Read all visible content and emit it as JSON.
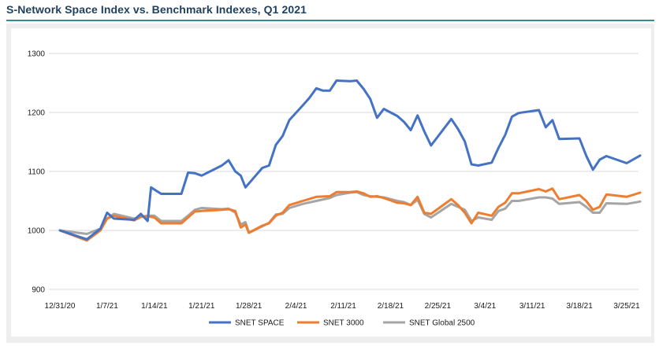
{
  "title": "S-Network Space Index vs. Benchmark Indexes, Q1 2021",
  "colors": {
    "title": "#1f3f5f",
    "rule": "#2e8f8f",
    "grid": "#d9d9d9"
  },
  "chart_data": {
    "type": "line",
    "title": "S-Network Space Index vs. Benchmark Indexes, Q1 2021",
    "xlabel": "",
    "ylabel": "",
    "ylim": [
      900,
      1300
    ],
    "yticks": [
      900,
      1000,
      1100,
      1200,
      1300
    ],
    "xlim": [
      0,
      84
    ],
    "xticks": [
      {
        "x": 0,
        "label": "12/31/20"
      },
      {
        "x": 7,
        "label": "1/7/21"
      },
      {
        "x": 14,
        "label": "1/14/21"
      },
      {
        "x": 21,
        "label": "1/21/21"
      },
      {
        "x": 28,
        "label": "1/28/21"
      },
      {
        "x": 35,
        "label": "2/4/21"
      },
      {
        "x": 42,
        "label": "2/11/21"
      },
      {
        "x": 49,
        "label": "2/18/21"
      },
      {
        "x": 56,
        "label": "2/25/21"
      },
      {
        "x": 63,
        "label": "3/4/21"
      },
      {
        "x": 70,
        "label": "3/11/21"
      },
      {
        "x": 77,
        "label": "3/18/21"
      },
      {
        "x": 84,
        "label": "3/25/21"
      }
    ],
    "grid": true,
    "legend_position": "bottom",
    "series": [
      {
        "name": "SNET SPACE",
        "color": "#4472c4",
        "points": [
          [
            0,
            1000
          ],
          [
            4,
            985
          ],
          [
            6,
            1003
          ],
          [
            7,
            1030
          ],
          [
            8,
            1020
          ],
          [
            11,
            1018
          ],
          [
            12,
            1028
          ],
          [
            13,
            1016
          ],
          [
            13.5,
            1073
          ],
          [
            15,
            1062
          ],
          [
            18,
            1062
          ],
          [
            19,
            1098
          ],
          [
            20,
            1097
          ],
          [
            21,
            1093
          ],
          [
            24,
            1110
          ],
          [
            25,
            1119
          ],
          [
            26,
            1100
          ],
          [
            26.8,
            1093
          ],
          [
            27.5,
            1073
          ],
          [
            30,
            1106
          ],
          [
            31,
            1110
          ],
          [
            32,
            1145
          ],
          [
            33,
            1160
          ],
          [
            34,
            1187
          ],
          [
            36,
            1212
          ],
          [
            37,
            1225
          ],
          [
            38,
            1241
          ],
          [
            39,
            1237
          ],
          [
            40,
            1237
          ],
          [
            41,
            1254
          ],
          [
            43,
            1253
          ],
          [
            44,
            1254
          ],
          [
            45,
            1240
          ],
          [
            46,
            1223
          ],
          [
            47,
            1191
          ],
          [
            48,
            1206
          ],
          [
            50,
            1194
          ],
          [
            51,
            1184
          ],
          [
            52,
            1170
          ],
          [
            53,
            1195
          ],
          [
            54,
            1168
          ],
          [
            55,
            1144
          ],
          [
            58,
            1189
          ],
          [
            59,
            1172
          ],
          [
            60,
            1151
          ],
          [
            61,
            1112
          ],
          [
            62,
            1110
          ],
          [
            64,
            1115
          ],
          [
            65,
            1140
          ],
          [
            66,
            1162
          ],
          [
            67,
            1193
          ],
          [
            68,
            1199
          ],
          [
            71,
            1204
          ],
          [
            72,
            1175
          ],
          [
            73,
            1187
          ],
          [
            74,
            1155
          ],
          [
            77,
            1156
          ],
          [
            78,
            1127
          ],
          [
            79,
            1103
          ],
          [
            80,
            1120
          ],
          [
            81,
            1126
          ],
          [
            84,
            1114
          ],
          [
            86,
            1127
          ]
        ]
      },
      {
        "name": "SNET 3000",
        "color": "#ed7d31",
        "points": [
          [
            0,
            1000
          ],
          [
            4,
            983
          ],
          [
            6,
            1000
          ],
          [
            7,
            1020
          ],
          [
            8,
            1025
          ],
          [
            11,
            1017
          ],
          [
            12,
            1023
          ],
          [
            13,
            1024
          ],
          [
            14,
            1022
          ],
          [
            15,
            1012
          ],
          [
            18,
            1012
          ],
          [
            19,
            1022
          ],
          [
            20,
            1032
          ],
          [
            21,
            1033
          ],
          [
            24,
            1035
          ],
          [
            25,
            1036
          ],
          [
            26,
            1033
          ],
          [
            26.8,
            1005
          ],
          [
            27.5,
            1010
          ],
          [
            28,
            996
          ],
          [
            30,
            1008
          ],
          [
            31,
            1012
          ],
          [
            32,
            1025
          ],
          [
            33,
            1030
          ],
          [
            34,
            1043
          ],
          [
            36,
            1050
          ],
          [
            38,
            1057
          ],
          [
            40,
            1058
          ],
          [
            41,
            1065
          ],
          [
            43,
            1065
          ],
          [
            44,
            1066
          ],
          [
            45,
            1063
          ],
          [
            46,
            1057
          ],
          [
            47,
            1058
          ],
          [
            48,
            1055
          ],
          [
            50,
            1047
          ],
          [
            51,
            1046
          ],
          [
            52,
            1043
          ],
          [
            53,
            1057
          ],
          [
            54,
            1030
          ],
          [
            55,
            1028
          ],
          [
            58,
            1053
          ],
          [
            59,
            1043
          ],
          [
            60,
            1030
          ],
          [
            61,
            1012
          ],
          [
            62,
            1030
          ],
          [
            64,
            1025
          ],
          [
            65,
            1040
          ],
          [
            66,
            1047
          ],
          [
            67,
            1063
          ],
          [
            68,
            1063
          ],
          [
            71,
            1070
          ],
          [
            72,
            1066
          ],
          [
            73,
            1071
          ],
          [
            74,
            1053
          ],
          [
            77,
            1060
          ],
          [
            78,
            1050
          ],
          [
            79,
            1035
          ],
          [
            80,
            1040
          ],
          [
            81,
            1061
          ],
          [
            84,
            1057
          ],
          [
            86,
            1064
          ]
        ]
      },
      {
        "name": "SNET Global 2500",
        "color": "#a5a5a5",
        "points": [
          [
            0,
            1000
          ],
          [
            4,
            994
          ],
          [
            6,
            1003
          ],
          [
            7,
            1020
          ],
          [
            8,
            1028
          ],
          [
            11,
            1020
          ],
          [
            12,
            1023
          ],
          [
            13,
            1025
          ],
          [
            14,
            1025
          ],
          [
            15,
            1016
          ],
          [
            18,
            1016
          ],
          [
            19,
            1025
          ],
          [
            20,
            1035
          ],
          [
            21,
            1038
          ],
          [
            24,
            1036
          ],
          [
            25,
            1037
          ],
          [
            26,
            1030
          ],
          [
            26.8,
            1010
          ],
          [
            27.5,
            1014
          ],
          [
            28,
            996
          ],
          [
            30,
            1007
          ],
          [
            31,
            1013
          ],
          [
            32,
            1027
          ],
          [
            33,
            1028
          ],
          [
            34,
            1038
          ],
          [
            36,
            1045
          ],
          [
            38,
            1050
          ],
          [
            40,
            1055
          ],
          [
            41,
            1060
          ],
          [
            43,
            1064
          ],
          [
            44,
            1065
          ],
          [
            45,
            1060
          ],
          [
            46,
            1058
          ],
          [
            47,
            1057
          ],
          [
            48,
            1056
          ],
          [
            50,
            1050
          ],
          [
            51,
            1048
          ],
          [
            52,
            1043
          ],
          [
            53,
            1052
          ],
          [
            54,
            1028
          ],
          [
            55,
            1022
          ],
          [
            58,
            1045
          ],
          [
            59,
            1040
          ],
          [
            60,
            1035
          ],
          [
            61,
            1016
          ],
          [
            62,
            1022
          ],
          [
            64,
            1018
          ],
          [
            65,
            1033
          ],
          [
            66,
            1037
          ],
          [
            67,
            1050
          ],
          [
            68,
            1050
          ],
          [
            71,
            1056
          ],
          [
            72,
            1056
          ],
          [
            73,
            1054
          ],
          [
            74,
            1045
          ],
          [
            77,
            1048
          ],
          [
            78,
            1040
          ],
          [
            79,
            1030
          ],
          [
            80,
            1030
          ],
          [
            81,
            1046
          ],
          [
            84,
            1045
          ],
          [
            86,
            1049
          ]
        ]
      }
    ]
  }
}
